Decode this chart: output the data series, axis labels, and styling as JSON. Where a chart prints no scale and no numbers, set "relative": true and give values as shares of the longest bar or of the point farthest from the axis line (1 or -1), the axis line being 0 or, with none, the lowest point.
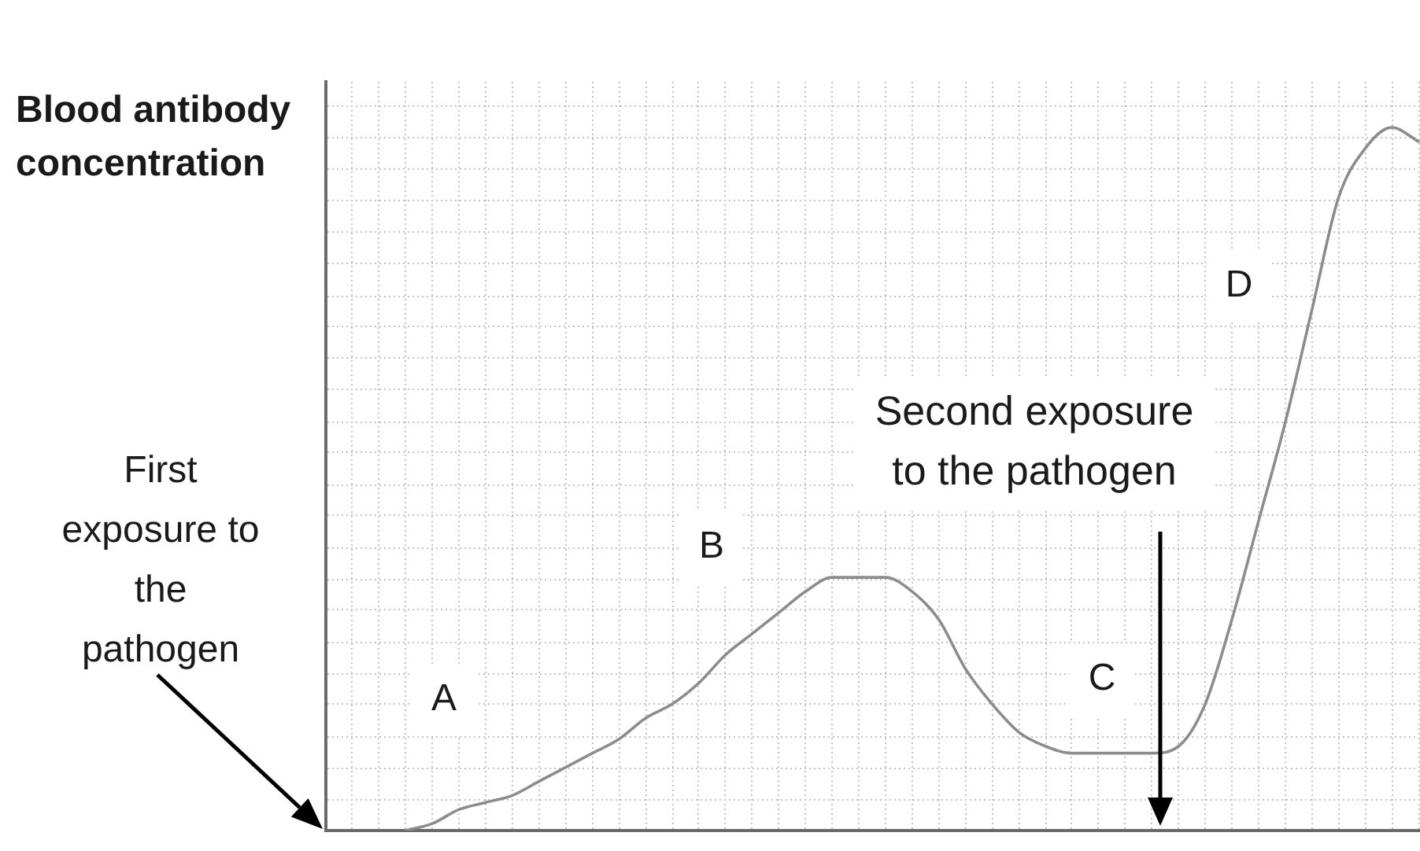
{
  "chart_data": {
    "type": "line",
    "relative": true,
    "ylabel": "Blood antibody concentration",
    "categories": [
      null,
      null,
      null,
      null,
      null,
      null,
      null,
      null,
      null,
      null,
      null,
      null,
      null,
      null,
      null,
      null,
      null,
      null,
      null,
      null,
      null,
      null,
      null,
      null,
      null,
      null,
      null,
      null,
      null,
      null,
      null,
      null,
      null,
      null,
      null,
      null,
      null,
      null,
      null,
      null,
      null,
      null
    ],
    "values": [
      null,
      null,
      null,
      0,
      0.01,
      0.03,
      0.04,
      0.05,
      0.07,
      0.09,
      0.11,
      0.13,
      0.16,
      0.18,
      0.21,
      0.25,
      0.28,
      0.31,
      0.34,
      0.36,
      0.36,
      0.36,
      0.34,
      0.3,
      0.23,
      0.18,
      0.14,
      0.12,
      0.11,
      0.11,
      0.11,
      0.11,
      0.12,
      0.18,
      0.3,
      0.44,
      0.58,
      0.74,
      0.9,
      0.97,
      1,
      0.98
    ],
    "color": "#8c8c8c",
    "annotations": [
      "First exposure to the pathogen",
      "A",
      "B",
      "Second exposure to the pathogen",
      "C",
      "D"
    ],
    "grid": true,
    "marker": "none"
  }
}
